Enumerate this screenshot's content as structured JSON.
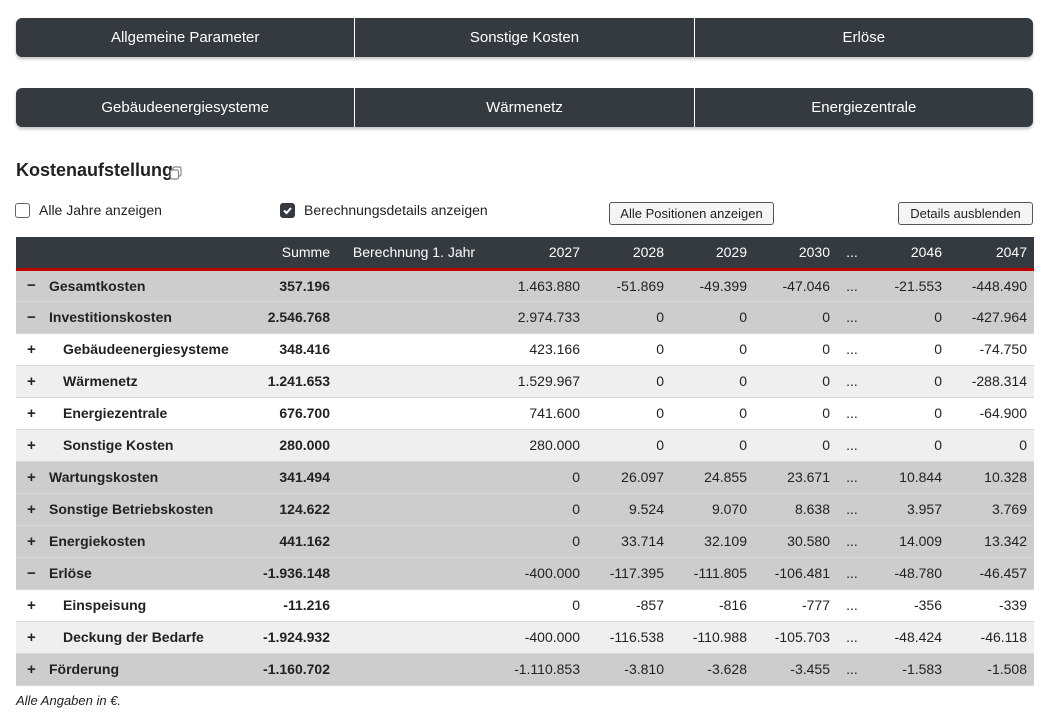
{
  "nav_row1": [
    "Allgemeine Parameter",
    "Sonstige Kosten",
    "Erlöse"
  ],
  "nav_row2": [
    "Gebäudeenergiesysteme",
    "Wärmenetz",
    "Energiezentrale"
  ],
  "section_title": "Kostenaufstellung",
  "options": {
    "all_years_label": "Alle Jahre anzeigen",
    "all_years_checked": false,
    "calc_details_label": "Berechnungsdetails anzeigen",
    "calc_details_checked": true
  },
  "buttons": {
    "show_all_positions": "Alle Positionen anzeigen",
    "hide_details": "Details ausblenden"
  },
  "table": {
    "headers": [
      "",
      "",
      "Summe",
      "Berechnung 1. Jahr",
      "2027",
      "2028",
      "2029",
      "2030",
      "...",
      "2046",
      "2047"
    ],
    "rows": [
      {
        "toggle": "−",
        "level": 0,
        "label": "Gesamtkosten",
        "sum": "357.196",
        "calc": "",
        "values": [
          "1.463.880",
          "-51.869",
          "-49.399",
          "-47.046",
          "...",
          "-21.553",
          "-448.490"
        ]
      },
      {
        "toggle": "−",
        "level": 0,
        "label": "Investitionskosten",
        "sum": "2.546.768",
        "calc": "",
        "values": [
          "2.974.733",
          "0",
          "0",
          "0",
          "...",
          "0",
          "-427.964"
        ]
      },
      {
        "toggle": "+",
        "level": 1,
        "label": "Gebäudeenergiesysteme",
        "sum": "348.416",
        "calc": "",
        "values": [
          "423.166",
          "0",
          "0",
          "0",
          "...",
          "0",
          "-74.750"
        ]
      },
      {
        "toggle": "+",
        "level": 1,
        "label": "Wärmenetz",
        "sum": "1.241.653",
        "calc": "",
        "values": [
          "1.529.967",
          "0",
          "0",
          "0",
          "...",
          "0",
          "-288.314"
        ]
      },
      {
        "toggle": "+",
        "level": 1,
        "label": "Energiezentrale",
        "sum": "676.700",
        "calc": "",
        "values": [
          "741.600",
          "0",
          "0",
          "0",
          "...",
          "0",
          "-64.900"
        ]
      },
      {
        "toggle": "+",
        "level": 1,
        "label": "Sonstige Kosten",
        "sum": "280.000",
        "calc": "",
        "values": [
          "280.000",
          "0",
          "0",
          "0",
          "...",
          "0",
          "0"
        ]
      },
      {
        "toggle": "+",
        "level": 0,
        "label": "Wartungskosten",
        "sum": "341.494",
        "calc": "",
        "values": [
          "0",
          "26.097",
          "24.855",
          "23.671",
          "...",
          "10.844",
          "10.328"
        ]
      },
      {
        "toggle": "+",
        "level": 0,
        "label": "Sonstige Betriebskosten",
        "sum": "124.622",
        "calc": "",
        "values": [
          "0",
          "9.524",
          "9.070",
          "8.638",
          "...",
          "3.957",
          "3.769"
        ]
      },
      {
        "toggle": "+",
        "level": 0,
        "label": "Energiekosten",
        "sum": "441.162",
        "calc": "",
        "values": [
          "0",
          "33.714",
          "32.109",
          "30.580",
          "...",
          "14.009",
          "13.342"
        ]
      },
      {
        "toggle": "−",
        "level": 0,
        "label": "Erlöse",
        "sum": "-1.936.148",
        "calc": "",
        "values": [
          "-400.000",
          "-117.395",
          "-111.805",
          "-106.481",
          "...",
          "-48.780",
          "-46.457"
        ]
      },
      {
        "toggle": "+",
        "level": 1,
        "label": "Einspeisung",
        "sum": "-11.216",
        "calc": "",
        "values": [
          "0",
          "-857",
          "-816",
          "-777",
          "...",
          "-356",
          "-339"
        ]
      },
      {
        "toggle": "+",
        "level": 1,
        "label": "Deckung der Bedarfe",
        "sum": "-1.924.932",
        "calc": "",
        "values": [
          "-400.000",
          "-116.538",
          "-110.988",
          "-105.703",
          "...",
          "-48.424",
          "-46.118"
        ]
      },
      {
        "toggle": "+",
        "level": 0,
        "label": "Förderung",
        "sum": "-1.160.702",
        "calc": "",
        "values": [
          "-1.110.853",
          "-3.810",
          "-3.628",
          "-3.455",
          "...",
          "-1.583",
          "-1.508"
        ]
      }
    ]
  },
  "footer_note": "Alle Angaben in €.",
  "colors": {
    "nav_bg": "#343a40",
    "header_accent": "#c00000",
    "group_row_bg": "#cdcdcd",
    "striped_row_bg": "#efefef"
  }
}
